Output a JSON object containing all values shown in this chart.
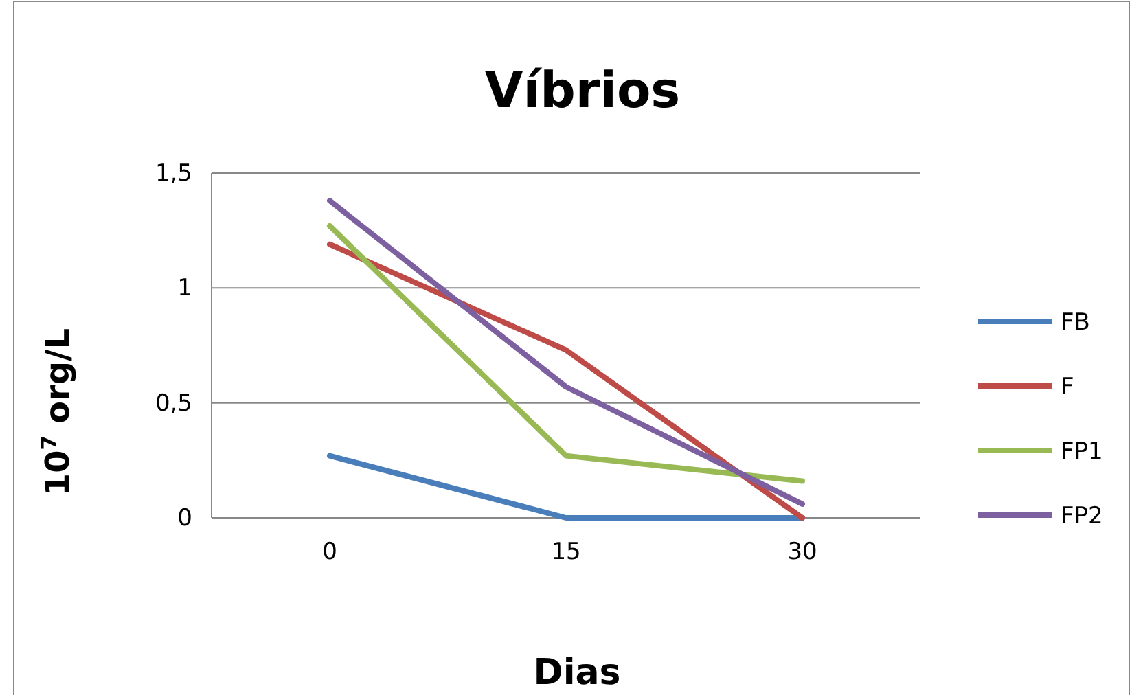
{
  "chart_data": {
    "type": "line",
    "title": "Víbrios",
    "xlabel": "Dias",
    "ylabel": "10$^{7}$ org/L",
    "categories": [
      "0",
      "15",
      "30"
    ],
    "series": [
      {
        "name": "FB",
        "color": "#4a7ebb",
        "values": [
          0.27,
          0,
          0
        ]
      },
      {
        "name": "F",
        "color": "#be4b48",
        "values": [
          1.19,
          0.73,
          0
        ]
      },
      {
        "name": "FP1",
        "color": "#98b954",
        "values": [
          1.27,
          0.27,
          0.16
        ]
      },
      {
        "name": "FP2",
        "color": "#7d60a0",
        "values": [
          1.38,
          0.57,
          0.06
        ]
      }
    ],
    "ylim": [
      0,
      1.5
    ],
    "yticks": [
      {
        "value": 0,
        "label": "0"
      },
      {
        "value": 0.5,
        "label": "0,5"
      },
      {
        "value": 1,
        "label": "1"
      },
      {
        "value": 1.5,
        "label": "1,5"
      }
    ],
    "grid": "y",
    "legend": "right",
    "marker": "none",
    "line_style": "solid"
  }
}
